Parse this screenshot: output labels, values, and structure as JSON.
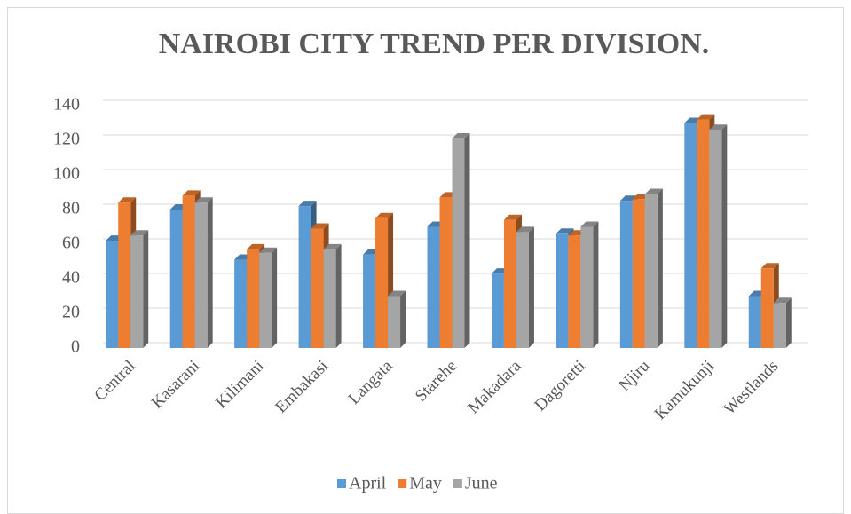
{
  "chart_data": {
    "type": "bar3d",
    "title": "NAIROBI CITY TREND PER DIVISION.",
    "categories": [
      "Central",
      "Kasarani",
      "Kilimani",
      "Embakasi",
      "Langata",
      "Starehe",
      "Makadara",
      "Dagoretti",
      "Njiru",
      "Kamukunji",
      "Westlands"
    ],
    "series": [
      {
        "name": "April",
        "color": "#5b9bd5",
        "values": [
          62,
          80,
          51,
          82,
          54,
          70,
          43,
          66,
          85,
          130,
          30
        ]
      },
      {
        "name": "May",
        "color": "#ed7d31",
        "values": [
          84,
          88,
          57,
          69,
          75,
          87,
          74,
          65,
          86,
          132,
          46
        ]
      },
      {
        "name": "June",
        "color": "#a5a5a5",
        "values": [
          65,
          84,
          55,
          57,
          30,
          121,
          67,
          70,
          89,
          126,
          26
        ]
      }
    ],
    "ylim": [
      0,
      140
    ],
    "yticks": [
      0,
      20,
      40,
      60,
      80,
      100,
      120,
      140
    ],
    "grid": true,
    "legend": "bottom"
  }
}
